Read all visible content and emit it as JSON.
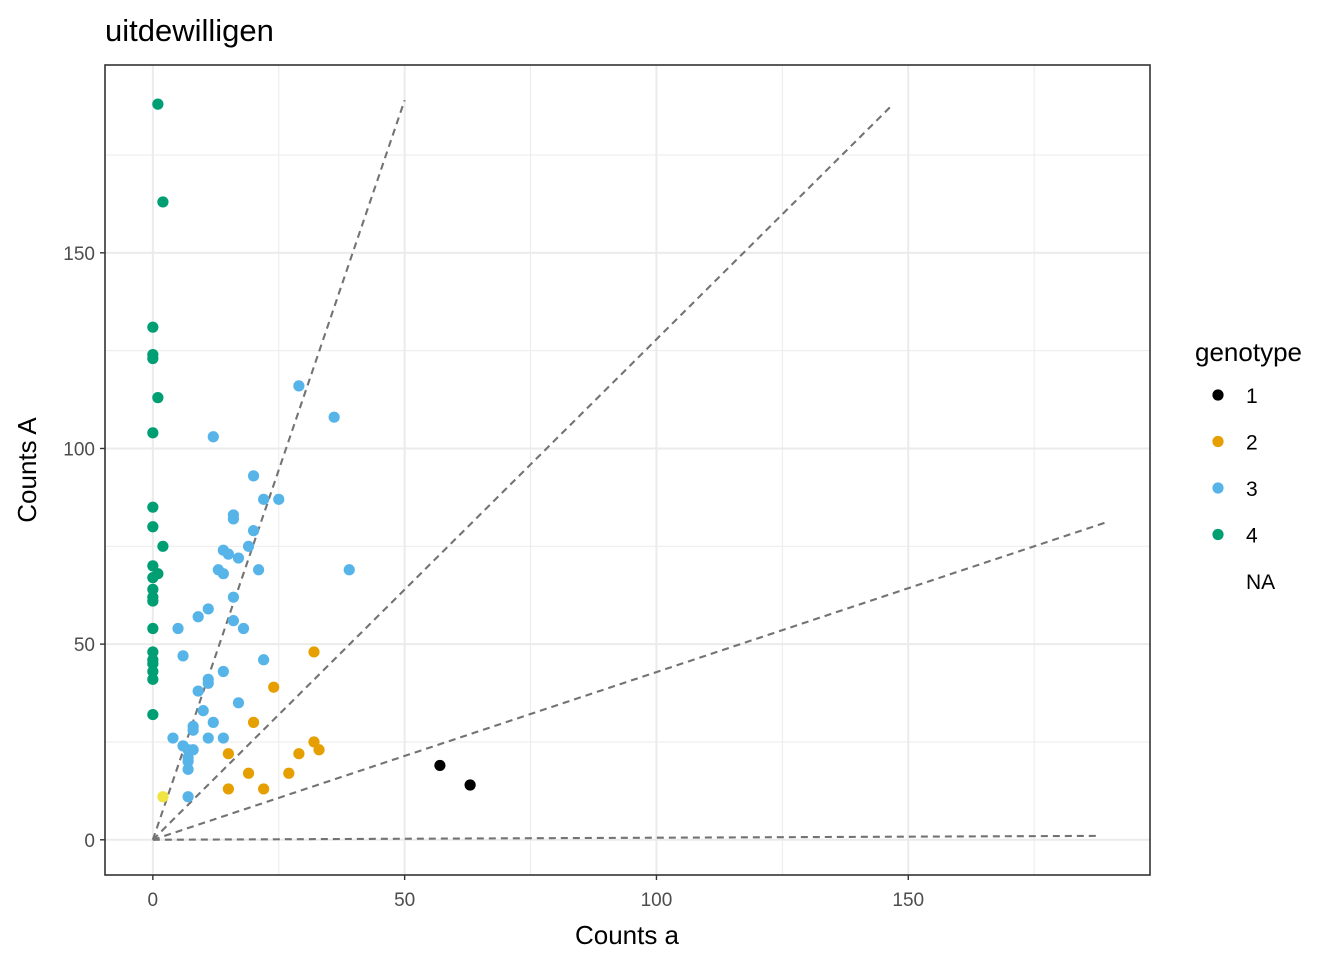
{
  "chart_data": {
    "type": "scatter",
    "title": "uitdewilligen",
    "xlabel": "Counts a",
    "ylabel": "Counts A",
    "xlim": [
      -9.5,
      198
    ],
    "ylim": [
      -9,
      198
    ],
    "x_ticks": [
      0,
      50,
      100,
      150
    ],
    "y_ticks": [
      0,
      50,
      100,
      150
    ],
    "grid": true,
    "legend": {
      "title": "genotype",
      "placement": "right",
      "entries": [
        {
          "label": "1",
          "color": "#000000"
        },
        {
          "label": "2",
          "color": "#E69F00"
        },
        {
          "label": "3",
          "color": "#56B4E9"
        },
        {
          "label": "4",
          "color": "#009E73"
        },
        {
          "label": "NA",
          "color": null
        }
      ]
    },
    "reference_lines": [
      {
        "x": [
          0,
          50
        ],
        "y": [
          0,
          189
        ]
      },
      {
        "x": [
          0,
          147
        ],
        "y": [
          0,
          188
        ]
      },
      {
        "x": [
          0,
          189
        ],
        "y": [
          0,
          81
        ]
      },
      {
        "x": [
          0,
          188
        ],
        "y": [
          0,
          1
        ]
      }
    ],
    "series": [
      {
        "name": "1",
        "color": "#000000",
        "points": [
          [
            57,
            19
          ],
          [
            63,
            14
          ]
        ]
      },
      {
        "name": "2",
        "color": "#E69F00",
        "points": [
          [
            32,
            48
          ],
          [
            24,
            39
          ],
          [
            20,
            30
          ],
          [
            15,
            22
          ],
          [
            29,
            22
          ],
          [
            32,
            25
          ],
          [
            33,
            23
          ],
          [
            19,
            17
          ],
          [
            27,
            17
          ],
          [
            15,
            13
          ],
          [
            22,
            13
          ]
        ]
      },
      {
        "name": "3",
        "color": "#56B4E9",
        "points": [
          [
            29,
            116
          ],
          [
            36,
            108
          ],
          [
            12,
            103
          ],
          [
            20,
            93
          ],
          [
            22,
            87
          ],
          [
            25,
            87
          ],
          [
            16,
            83
          ],
          [
            16,
            82
          ],
          [
            20,
            79
          ],
          [
            19,
            75
          ],
          [
            14,
            74
          ],
          [
            15,
            73
          ],
          [
            17,
            72
          ],
          [
            13,
            69
          ],
          [
            14,
            68
          ],
          [
            21,
            69
          ],
          [
            39,
            69
          ],
          [
            16,
            62
          ],
          [
            11,
            59
          ],
          [
            9,
            57
          ],
          [
            16,
            56
          ],
          [
            18,
            54
          ],
          [
            5,
            54
          ],
          [
            6,
            47
          ],
          [
            22,
            46
          ],
          [
            14,
            43
          ],
          [
            11,
            41
          ],
          [
            11,
            40
          ],
          [
            9,
            38
          ],
          [
            17,
            35
          ],
          [
            10,
            33
          ],
          [
            12,
            30
          ],
          [
            8,
            29
          ],
          [
            8,
            28
          ],
          [
            4,
            26
          ],
          [
            11,
            26
          ],
          [
            14,
            26
          ],
          [
            6,
            24
          ],
          [
            7,
            23
          ],
          [
            8,
            23
          ],
          [
            7,
            21
          ],
          [
            7,
            20
          ],
          [
            7,
            18
          ],
          [
            7,
            11
          ]
        ]
      },
      {
        "name": "4",
        "color": "#009E73",
        "points": [
          [
            1,
            188
          ],
          [
            2,
            163
          ],
          [
            0,
            131
          ],
          [
            0,
            124
          ],
          [
            0,
            123
          ],
          [
            1,
            113
          ],
          [
            0,
            104
          ],
          [
            0,
            85
          ],
          [
            0,
            80
          ],
          [
            2,
            75
          ],
          [
            0,
            70
          ],
          [
            1,
            68
          ],
          [
            0,
            67
          ],
          [
            0,
            64
          ],
          [
            0,
            62
          ],
          [
            0,
            61
          ],
          [
            0,
            54
          ],
          [
            0,
            48
          ],
          [
            0,
            46
          ],
          [
            0,
            45
          ],
          [
            0,
            43
          ],
          [
            0,
            41
          ],
          [
            0,
            32
          ]
        ]
      },
      {
        "name": "NA",
        "color": "#F0E442",
        "points": [
          [
            2,
            11
          ]
        ]
      }
    ]
  }
}
